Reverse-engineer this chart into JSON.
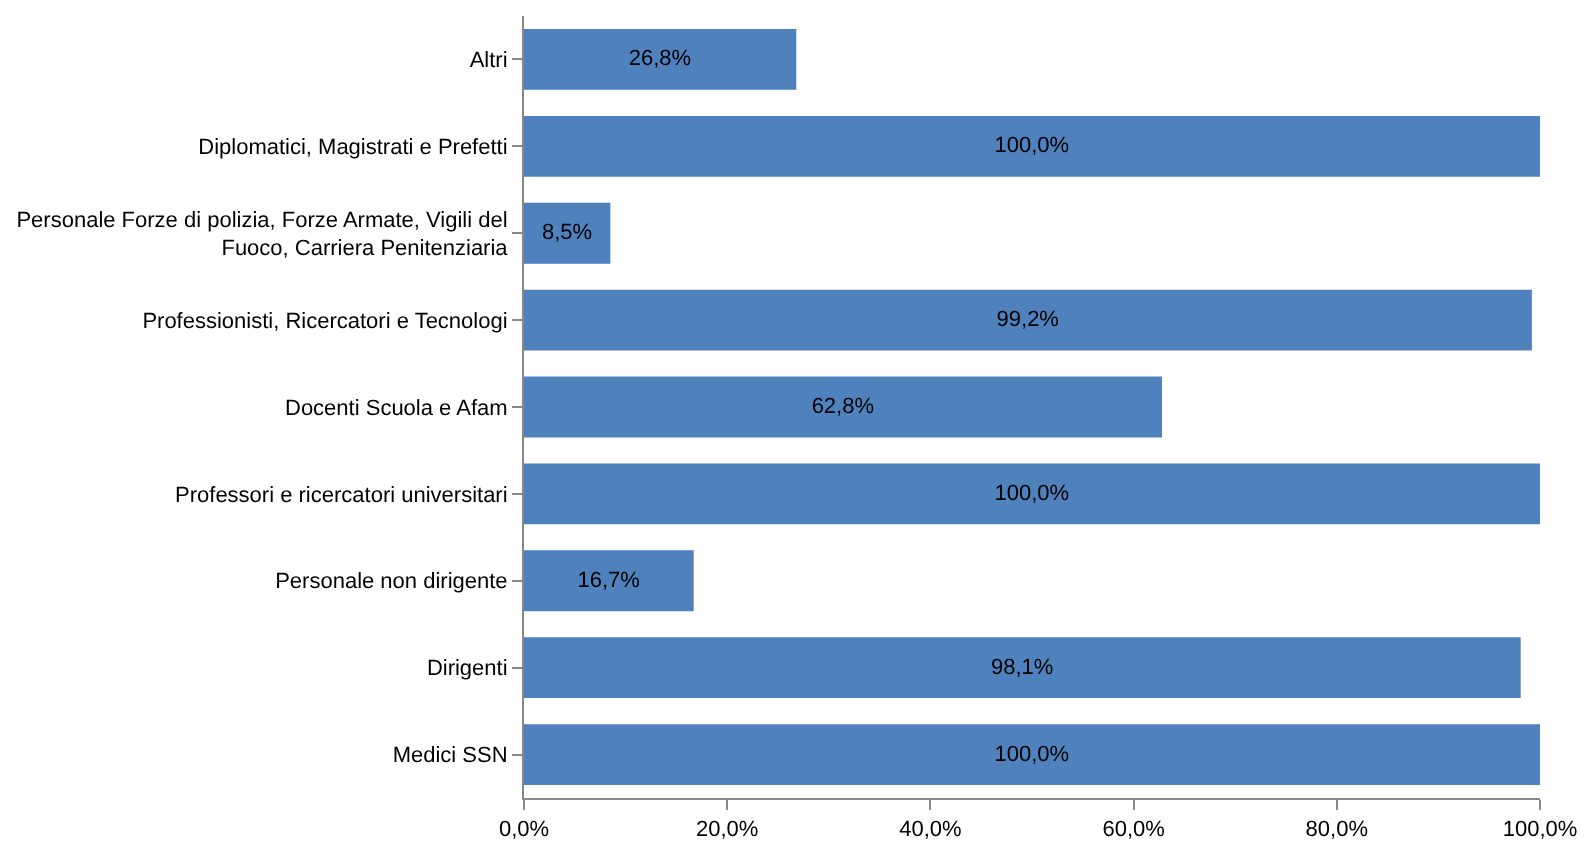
{
  "chart_data": {
    "type": "bar",
    "orientation": "horizontal",
    "categories": [
      "Altri",
      "Diplomatici, Magistrati e Prefetti",
      "Personale Forze di polizia, Forze Armate, Vigili del Fuoco, Carriera Penitenziaria",
      "Professionisti, Ricercatori e Tecnologi",
      "Docenti Scuola e Afam",
      "Professori e ricercatori universitari",
      "Personale non dirigente",
      "Dirigenti",
      "Medici SSN"
    ],
    "values": [
      26.8,
      100,
      8.5,
      99.2,
      62.8,
      100,
      16.7,
      98.1,
      100
    ],
    "value_labels": [
      "26,8%",
      "100,0%",
      "8,5%",
      "99,2%",
      "62,8%",
      "100,0%",
      "16,7%",
      "98,1%",
      "100,0%"
    ],
    "color": "#4f81bd",
    "xlim": [
      0,
      100
    ],
    "xticks": [
      {
        "value": 0,
        "label": "0,0%"
      },
      {
        "value": 20,
        "label": "20,0%"
      },
      {
        "value": 40,
        "label": "40,0%"
      },
      {
        "value": 60,
        "label": "60,0%"
      },
      {
        "value": 80,
        "label": "80,0%"
      },
      {
        "value": 100,
        "label": "100,0%"
      }
    ],
    "grid": false,
    "legend": false
  }
}
